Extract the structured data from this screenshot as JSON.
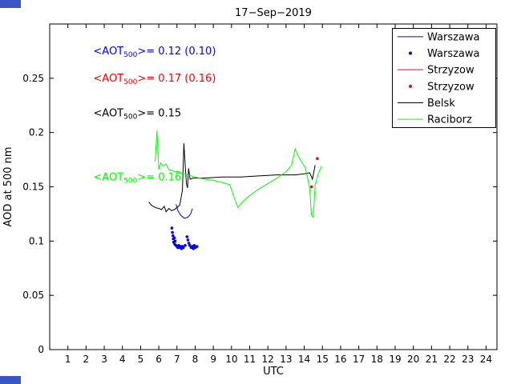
{
  "figure": {
    "background": "#ffffff",
    "border_fragment_color": "#3a56c4"
  },
  "chart_data": {
    "type": "line",
    "title": "17−Sep−2019",
    "xlabel": "UTC",
    "ylabel": "AOD at 500 nm",
    "xlim": [
      0,
      24.6
    ],
    "ylim": [
      0,
      0.3
    ],
    "xticks": [
      1,
      2,
      3,
      4,
      5,
      6,
      7,
      8,
      9,
      10,
      11,
      12,
      13,
      14,
      15,
      16,
      17,
      18,
      19,
      20,
      21,
      22,
      23,
      24
    ],
    "yticks": [
      0,
      0.05,
      0.1,
      0.15,
      0.2,
      0.25
    ],
    "ytick_labels": [
      "0",
      "0.05",
      "0.1",
      "0.15",
      "0.2",
      "0.25"
    ],
    "grid": false,
    "legend_position": "top-right",
    "series": [
      {
        "name": "Warszawa",
        "type": "line",
        "color": "#0000ff",
        "points": [
          [
            6.95,
            0.134
          ],
          [
            7.05,
            0.128
          ],
          [
            7.2,
            0.124
          ],
          [
            7.4,
            0.121
          ],
          [
            7.6,
            0.122
          ],
          [
            7.75,
            0.125
          ],
          [
            7.85,
            0.13
          ]
        ]
      },
      {
        "name": "Warszawa",
        "type": "scatter",
        "color": "#0000ff",
        "points": [
          [
            6.72,
            0.112
          ],
          [
            6.75,
            0.108
          ],
          [
            6.78,
            0.105
          ],
          [
            6.8,
            0.102
          ],
          [
            6.82,
            0.099
          ],
          [
            6.85,
            0.103
          ],
          [
            6.88,
            0.097
          ],
          [
            6.9,
            0.1
          ],
          [
            6.95,
            0.096
          ],
          [
            7.0,
            0.095
          ],
          [
            7.05,
            0.094
          ],
          [
            7.1,
            0.096
          ],
          [
            7.15,
            0.094
          ],
          [
            7.2,
            0.095
          ],
          [
            7.25,
            0.093
          ],
          [
            7.3,
            0.095
          ],
          [
            7.35,
            0.094
          ],
          [
            7.45,
            0.096
          ],
          [
            7.55,
            0.104
          ],
          [
            7.6,
            0.101
          ],
          [
            7.65,
            0.098
          ],
          [
            7.7,
            0.096
          ],
          [
            7.78,
            0.094
          ],
          [
            7.85,
            0.095
          ],
          [
            7.9,
            0.093
          ],
          [
            7.95,
            0.096
          ],
          [
            8.0,
            0.094
          ],
          [
            8.1,
            0.095
          ]
        ]
      },
      {
        "name": "Strzyzow",
        "type": "line",
        "color": "#ff0000",
        "points": [
          [
            14.35,
            0.149
          ],
          [
            14.45,
            0.151
          ]
        ]
      },
      {
        "name": "Strzyzow",
        "type": "scatter",
        "color": "#ff0000",
        "points": [
          [
            14.4,
            0.15
          ],
          [
            14.72,
            0.176
          ]
        ]
      },
      {
        "name": "Belsk",
        "type": "line",
        "color": "#000000",
        "points": [
          [
            5.45,
            0.136
          ],
          [
            5.6,
            0.133
          ],
          [
            5.8,
            0.131
          ],
          [
            6.0,
            0.13
          ],
          [
            6.15,
            0.129
          ],
          [
            6.3,
            0.132
          ],
          [
            6.4,
            0.127
          ],
          [
            6.55,
            0.13
          ],
          [
            6.7,
            0.128
          ],
          [
            6.85,
            0.129
          ],
          [
            7.0,
            0.131
          ],
          [
            7.15,
            0.133
          ],
          [
            7.3,
            0.147
          ],
          [
            7.38,
            0.19
          ],
          [
            7.46,
            0.168
          ],
          [
            7.52,
            0.153
          ],
          [
            7.58,
            0.149
          ],
          [
            7.64,
            0.167
          ],
          [
            7.72,
            0.157
          ],
          [
            7.9,
            0.158
          ],
          [
            8.5,
            0.158
          ],
          [
            9.5,
            0.159
          ],
          [
            10.5,
            0.159
          ],
          [
            11.5,
            0.16
          ],
          [
            12.5,
            0.161
          ],
          [
            13.5,
            0.161
          ],
          [
            14.0,
            0.162
          ],
          [
            14.3,
            0.163
          ],
          [
            14.45,
            0.157
          ],
          [
            14.6,
            0.17
          ]
        ]
      },
      {
        "name": "Raciborz",
        "type": "line",
        "color": "#00ff00",
        "points": [
          [
            5.8,
            0.173
          ],
          [
            5.9,
            0.202
          ],
          [
            6.0,
            0.166
          ],
          [
            6.1,
            0.172
          ],
          [
            6.25,
            0.169
          ],
          [
            6.4,
            0.171
          ],
          [
            6.55,
            0.166
          ],
          [
            6.7,
            0.165
          ],
          [
            6.9,
            0.164
          ],
          [
            7.1,
            0.164
          ],
          [
            7.35,
            0.162
          ],
          [
            7.6,
            0.161
          ],
          [
            8.0,
            0.159
          ],
          [
            8.5,
            0.157
          ],
          [
            9.0,
            0.156
          ],
          [
            9.5,
            0.154
          ],
          [
            9.9,
            0.152
          ],
          [
            10.15,
            0.14
          ],
          [
            10.35,
            0.131
          ],
          [
            10.6,
            0.136
          ],
          [
            11.0,
            0.142
          ],
          [
            11.5,
            0.148
          ],
          [
            12.0,
            0.153
          ],
          [
            12.5,
            0.158
          ],
          [
            13.0,
            0.164
          ],
          [
            13.3,
            0.17
          ],
          [
            13.5,
            0.185
          ],
          [
            13.65,
            0.179
          ],
          [
            13.85,
            0.173
          ],
          [
            14.05,
            0.168
          ],
          [
            14.2,
            0.157
          ],
          [
            14.3,
            0.148
          ],
          [
            14.4,
            0.124
          ],
          [
            14.5,
            0.122
          ],
          [
            14.6,
            0.152
          ],
          [
            14.75,
            0.161
          ],
          [
            14.95,
            0.169
          ]
        ]
      }
    ],
    "annotations": [
      {
        "prefix": "<AOT",
        "sub": "500",
        "rest": ">= 0.12 (0.10)",
        "color": "#0000ff",
        "x": 2.4,
        "y": 0.272
      },
      {
        "prefix": "<AOT",
        "sub": "500",
        "rest": ">= 0.17 (0.16)",
        "color": "#ff0000",
        "x": 2.4,
        "y": 0.247
      },
      {
        "prefix": "<AOT",
        "sub": "500",
        "rest": ">= 0.15",
        "color": "#000000",
        "x": 2.4,
        "y": 0.215
      },
      {
        "prefix": "<AOT",
        "sub": "500",
        "rest": ">= 0.16",
        "color": "#00ff00",
        "x": 2.4,
        "y": 0.156
      }
    ]
  }
}
